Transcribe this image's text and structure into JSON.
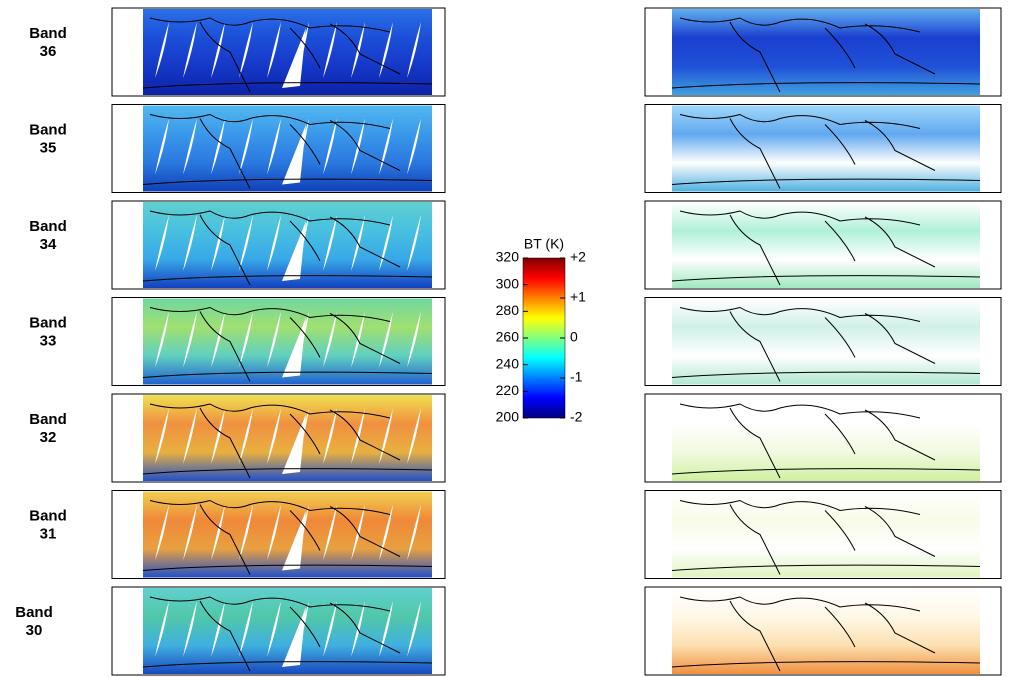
{
  "panels": [
    {
      "band": "Band",
      "number": "36"
    },
    {
      "band": "Band",
      "number": "35"
    },
    {
      "band": "Band",
      "number": "34"
    },
    {
      "band": "Band",
      "number": "33"
    },
    {
      "band": "Band",
      "number": "32"
    },
    {
      "band": "Band",
      "number": "31"
    },
    {
      "band": "Band",
      "number": "30"
    }
  ],
  "colorbar": {
    "title": "BT (K)",
    "lim": [
      200,
      320
    ],
    "ticks": [
      200,
      220,
      240,
      260,
      280,
      300,
      320
    ],
    "diff_lim": [
      -2,
      2
    ],
    "diff_ticks": [
      {
        "value": -2,
        "label": "-2"
      },
      -1,
      0,
      {
        "value": 1,
        "label": "+1"
      },
      {
        "value": 2,
        "label": "+2"
      }
    ]
  }
}
